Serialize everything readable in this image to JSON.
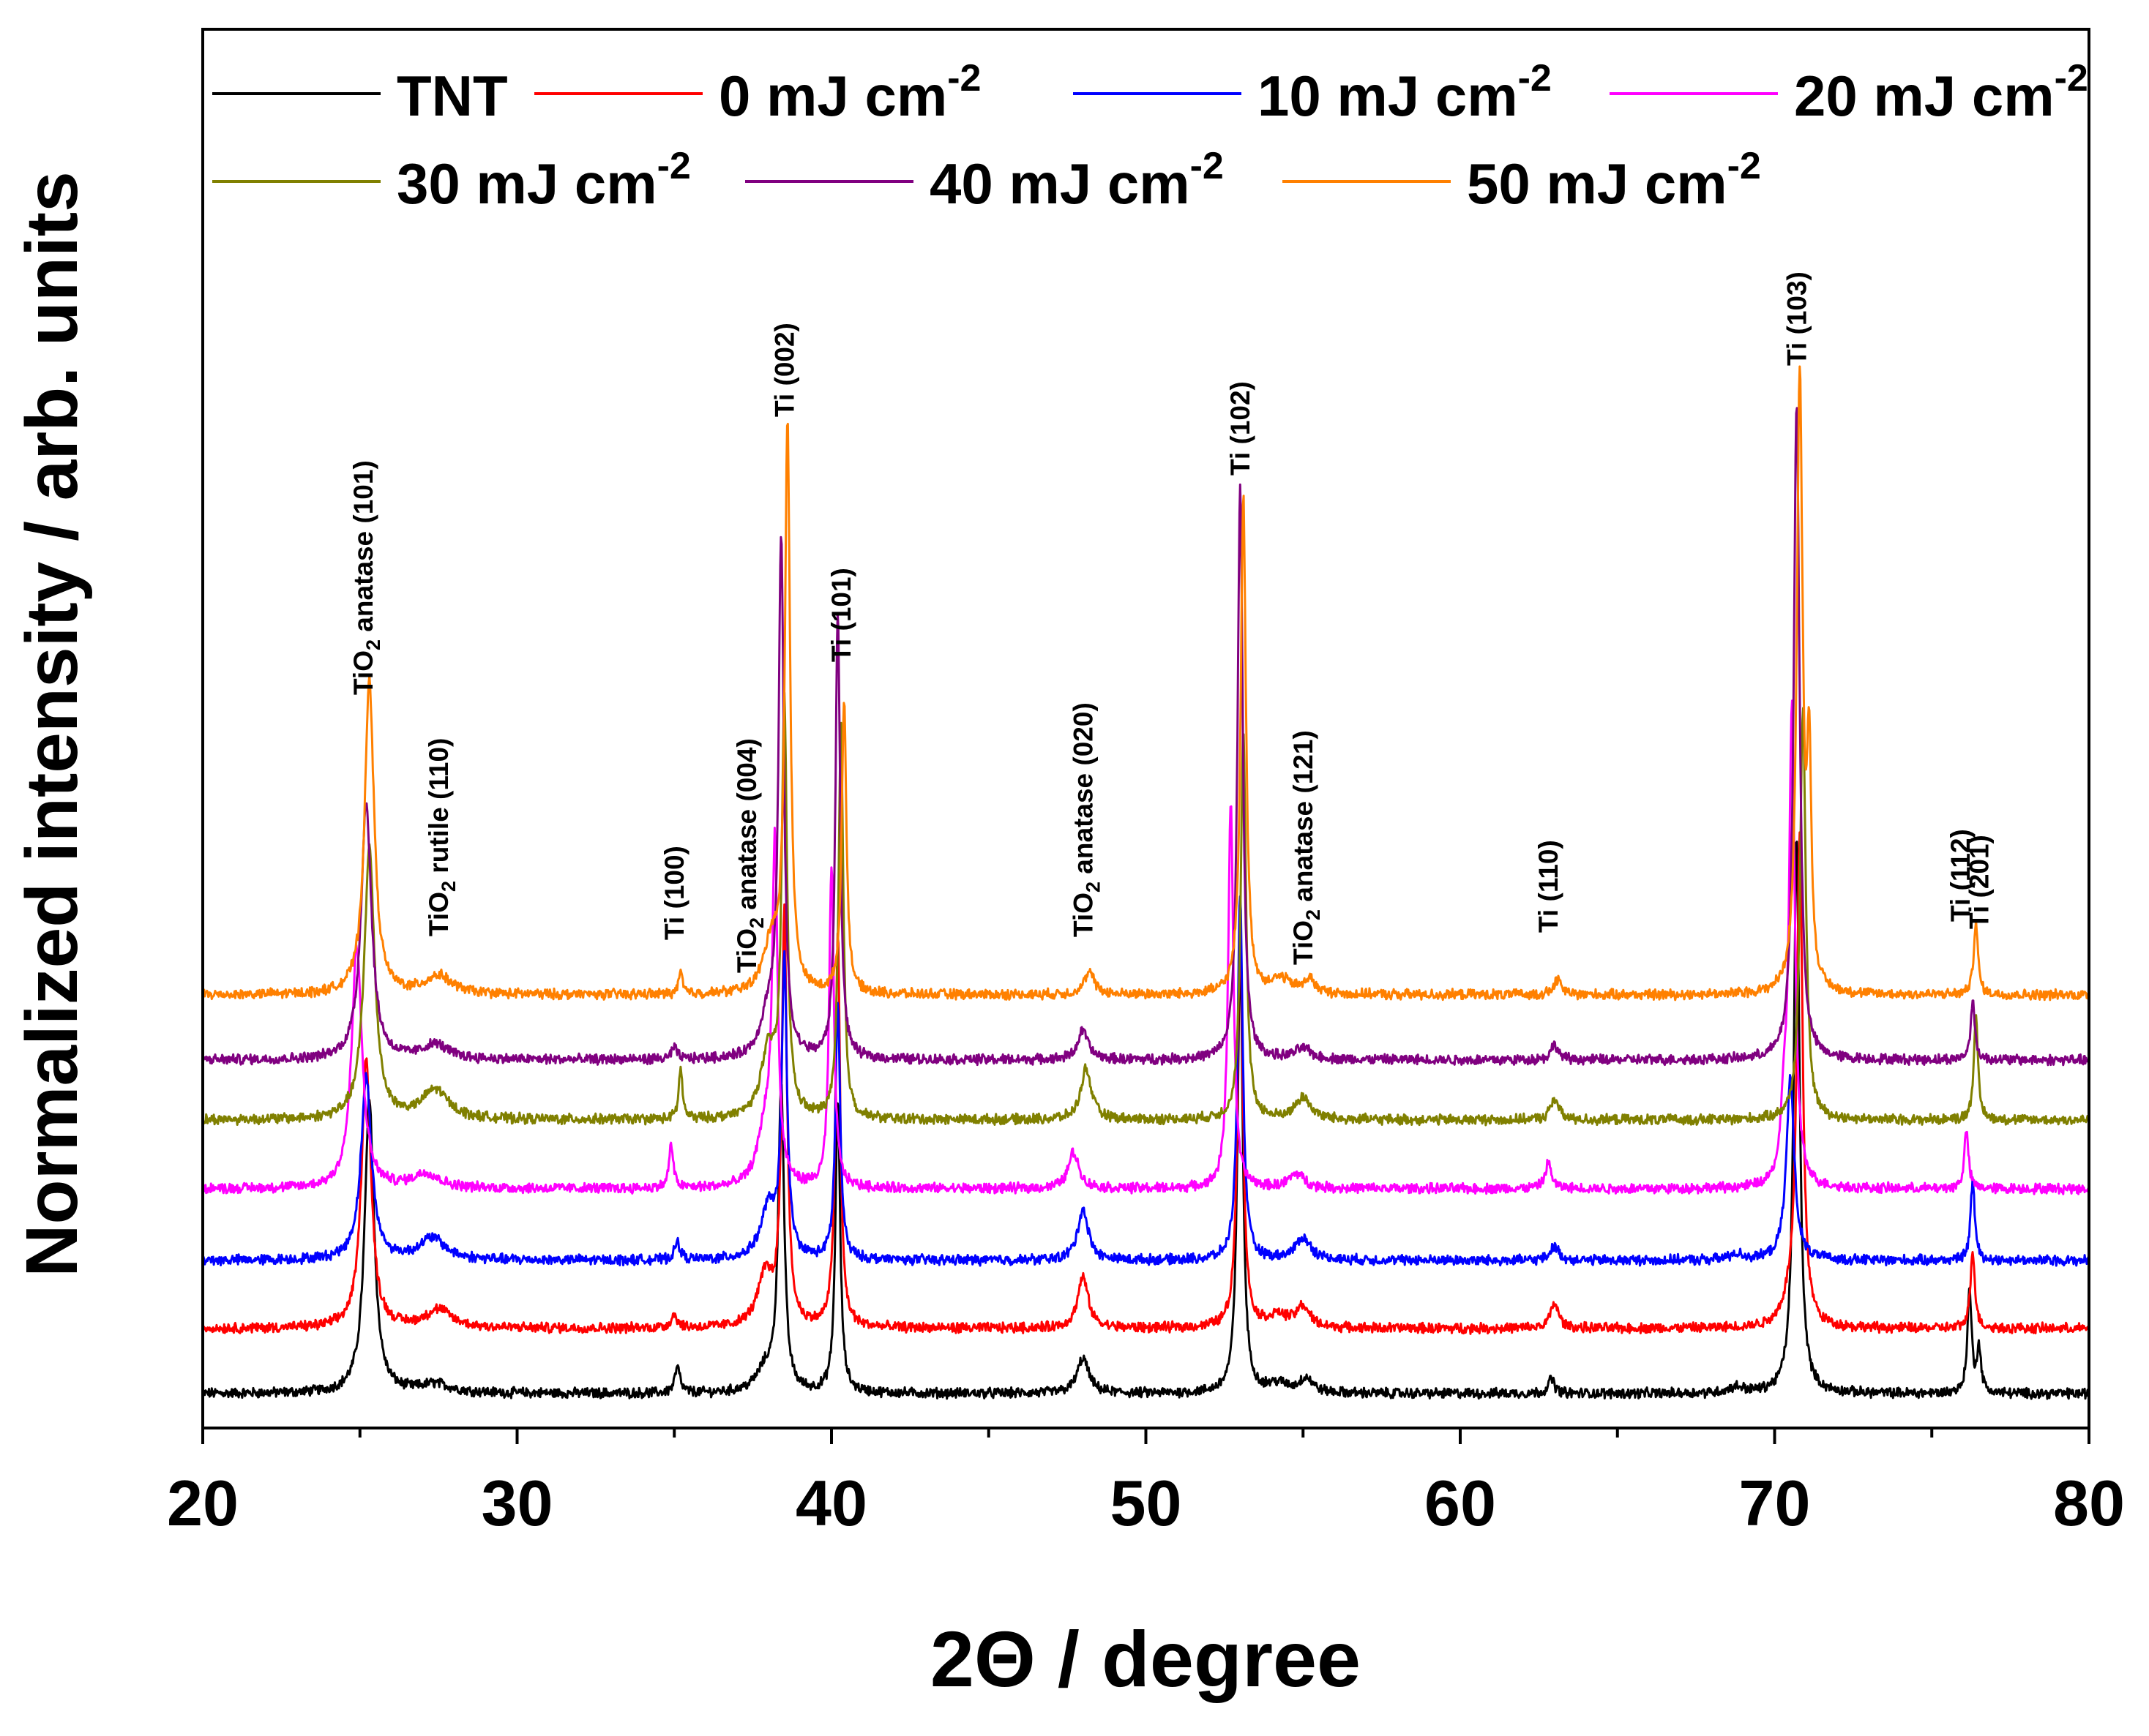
{
  "chart_data": {
    "type": "line",
    "title": "",
    "xlabel": "2Θ / degree",
    "ylabel": "Normalized intensity / arb. units",
    "xlim": [
      20,
      80
    ],
    "ylim": [
      0,
      1
    ],
    "grid": false,
    "x_ticks": [
      "20",
      "30",
      "40",
      "50",
      "60",
      "70",
      "80"
    ],
    "y_ticks": [],
    "legend": {
      "placement": "top",
      "columns": 4,
      "entries": [
        {
          "label": "TNT",
          "sup": ""
        },
        {
          "label": "0 mJ cm",
          "sup": "-2"
        },
        {
          "label": "10 mJ cm",
          "sup": "-2"
        },
        {
          "label": "20 mJ cm",
          "sup": "-2"
        },
        {
          "label": "30 mJ cm",
          "sup": "-2"
        },
        {
          "label": "40 mJ cm",
          "sup": "-2"
        },
        {
          "label": "50 mJ cm",
          "sup": "-2"
        }
      ]
    },
    "series": [
      {
        "name": "TNT",
        "color": "#000000",
        "offset": 0.0,
        "peaks": [
          [
            25.3,
            0.4,
            0.18
          ],
          [
            27.4,
            0.012,
            0.6
          ],
          [
            35.1,
            0.035,
            0.1
          ],
          [
            37.9,
            0.03,
            0.35
          ],
          [
            38.4,
            0.42,
            0.11
          ],
          [
            40.2,
            0.4,
            0.09
          ],
          [
            48.0,
            0.048,
            0.22
          ],
          [
            53.0,
            0.61,
            0.1
          ],
          [
            54.2,
            0.012,
            0.4
          ],
          [
            55.1,
            0.02,
            0.25
          ],
          [
            62.9,
            0.02,
            0.12
          ],
          [
            68.8,
            0.008,
            0.3
          ],
          [
            70.7,
            0.76,
            0.11
          ],
          [
            76.2,
            0.14,
            0.08
          ],
          [
            76.5,
            0.06,
            0.08
          ]
        ]
      },
      {
        "name": "0 mJ cm-2",
        "color": "#ff0000",
        "offset": 0.089,
        "peaks": [
          [
            25.2,
            0.37,
            0.18
          ],
          [
            27.5,
            0.025,
            0.5
          ],
          [
            35.0,
            0.018,
            0.12
          ],
          [
            37.9,
            0.07,
            0.3
          ],
          [
            38.5,
            0.56,
            0.1
          ],
          [
            40.2,
            0.54,
            0.09
          ],
          [
            48.0,
            0.07,
            0.2
          ],
          [
            53.0,
            0.56,
            0.1
          ],
          [
            54.2,
            0.016,
            0.4
          ],
          [
            55.0,
            0.028,
            0.25
          ],
          [
            63.0,
            0.035,
            0.15
          ],
          [
            70.5,
            0.03,
            0.3
          ],
          [
            70.8,
            0.66,
            0.11
          ],
          [
            76.3,
            0.11,
            0.08
          ]
        ]
      },
      {
        "name": "10 mJ cm-2",
        "color": "#0000ff",
        "offset": 0.182,
        "peaks": [
          [
            25.2,
            0.25,
            0.2
          ],
          [
            27.3,
            0.03,
            0.5
          ],
          [
            35.1,
            0.025,
            0.1
          ],
          [
            38.0,
            0.07,
            0.3
          ],
          [
            38.5,
            0.4,
            0.1
          ],
          [
            40.2,
            0.35,
            0.09
          ],
          [
            48.0,
            0.07,
            0.2
          ],
          [
            53.0,
            0.5,
            0.1
          ],
          [
            55.0,
            0.03,
            0.3
          ],
          [
            63.0,
            0.02,
            0.15
          ],
          [
            68.8,
            0.008,
            0.3
          ],
          [
            70.5,
            0.25,
            0.15
          ],
          [
            76.3,
            0.11,
            0.08
          ]
        ]
      },
      {
        "name": "20 mJ cm-2",
        "color": "#ff00ff",
        "offset": 0.28,
        "peaks": [
          [
            24.9,
            0.33,
            0.2
          ],
          [
            27.1,
            0.02,
            0.5
          ],
          [
            34.9,
            0.06,
            0.08
          ],
          [
            37.9,
            0.08,
            0.3
          ],
          [
            38.2,
            0.45,
            0.1
          ],
          [
            40.0,
            0.44,
            0.09
          ],
          [
            47.7,
            0.05,
            0.2
          ],
          [
            52.7,
            0.53,
            0.1
          ],
          [
            54.8,
            0.02,
            0.3
          ],
          [
            62.8,
            0.035,
            0.12
          ],
          [
            70.3,
            0.08,
            0.12
          ],
          [
            70.55,
            0.65,
            0.11
          ],
          [
            76.1,
            0.08,
            0.08
          ]
        ]
      },
      {
        "name": "30 mJ cm-2",
        "color": "#808000",
        "offset": 0.374,
        "peaks": [
          [
            25.3,
            0.37,
            0.2
          ],
          [
            27.4,
            0.04,
            0.5
          ],
          [
            35.2,
            0.07,
            0.07
          ],
          [
            38.0,
            0.09,
            0.3
          ],
          [
            38.5,
            0.56,
            0.1
          ],
          [
            40.3,
            0.54,
            0.09
          ],
          [
            48.1,
            0.07,
            0.2
          ],
          [
            53.1,
            0.53,
            0.1
          ],
          [
            55.0,
            0.03,
            0.3
          ],
          [
            63.0,
            0.03,
            0.15
          ],
          [
            70.9,
            0.56,
            0.11
          ],
          [
            76.4,
            0.14,
            0.08
          ]
        ]
      },
      {
        "name": "40 mJ cm-2",
        "color": "#800080",
        "offset": 0.456,
        "peaks": [
          [
            25.2,
            0.35,
            0.2
          ],
          [
            27.4,
            0.02,
            0.5
          ],
          [
            35.0,
            0.016,
            0.1
          ],
          [
            38.0,
            0.06,
            0.3
          ],
          [
            38.4,
            0.7,
            0.1
          ],
          [
            40.2,
            0.61,
            0.09
          ],
          [
            48.0,
            0.04,
            0.2
          ],
          [
            53.0,
            0.78,
            0.1
          ],
          [
            55.0,
            0.015,
            0.3
          ],
          [
            63.0,
            0.02,
            0.15
          ],
          [
            70.7,
            0.9,
            0.11
          ],
          [
            76.3,
            0.08,
            0.08
          ]
        ]
      },
      {
        "name": "50 mJ cm-2",
        "color": "#ff8000",
        "offset": 0.545,
        "peaks": [
          [
            25.3,
            0.43,
            0.18
          ],
          [
            27.5,
            0.025,
            0.5
          ],
          [
            35.2,
            0.03,
            0.07
          ],
          [
            38.1,
            0.07,
            0.3
          ],
          [
            38.6,
            0.77,
            0.1
          ],
          [
            40.4,
            0.4,
            0.09
          ],
          [
            48.2,
            0.03,
            0.2
          ],
          [
            53.1,
            0.68,
            0.1
          ],
          [
            54.3,
            0.02,
            0.4
          ],
          [
            55.2,
            0.02,
            0.2
          ],
          [
            63.1,
            0.02,
            0.15
          ],
          [
            70.8,
            0.84,
            0.11
          ],
          [
            71.1,
            0.3,
            0.08
          ],
          [
            76.4,
            0.1,
            0.08
          ]
        ]
      }
    ],
    "annotations": [
      {
        "text": "TiO",
        "sub": "2",
        "after": " anatase (101)",
        "x": 25.4,
        "y": 0.955
      },
      {
        "text": "TiO",
        "sub": "2",
        "after": " rutile (110)",
        "x": 27.8,
        "y": 0.625
      },
      {
        "text": "Ti (100)",
        "sub": "",
        "after": "",
        "x": 35.3,
        "y": 0.62
      },
      {
        "text": "TiO",
        "sub": "2",
        "after": " anatase (004)",
        "x": 37.6,
        "y": 0.575
      },
      {
        "text": "Ti (002)",
        "sub": "",
        "after": "",
        "x": 38.8,
        "y": 1.335
      },
      {
        "text": "Ti (101)",
        "sub": "",
        "after": "",
        "x": 40.6,
        "y": 1.0
      },
      {
        "text": "TiO",
        "sub": "2",
        "after": " anatase (020)",
        "x": 48.3,
        "y": 0.624
      },
      {
        "text": "Ti (102)",
        "sub": "",
        "after": "",
        "x": 53.3,
        "y": 1.255
      },
      {
        "text": "TiO",
        "sub": "2",
        "after": " anatase (121)",
        "x": 55.3,
        "y": 0.586
      },
      {
        "text": "Ti (110)",
        "sub": "",
        "after": "",
        "x": 63.1,
        "y": 0.63
      },
      {
        "text": "Ti (103)",
        "sub": "",
        "after": "",
        "x": 71.0,
        "y": 1.405
      },
      {
        "text": "Ti (112)",
        "sub": "",
        "after": "",
        "x": 76.2,
        "y": 0.645
      },
      {
        "text": "Ti (201)",
        "sub": "",
        "after": "",
        "x": 76.8,
        "y": 0.635
      }
    ]
  }
}
